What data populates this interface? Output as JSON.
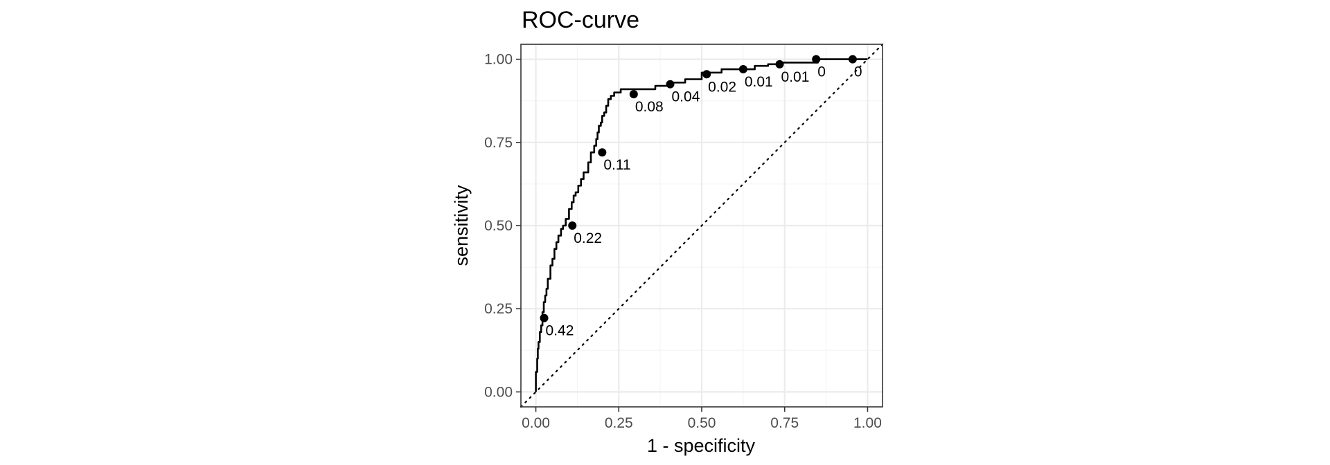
{
  "chart_data": {
    "type": "line",
    "title": "ROC-curve",
    "xlabel": "1 - specificity",
    "ylabel": "sensitivity",
    "xlim": [
      -0.045,
      1.045
    ],
    "ylim": [
      -0.045,
      1.045
    ],
    "grid": true,
    "x_ticks": [
      0,
      0.25,
      0.5,
      0.75,
      1
    ],
    "x_tick_labels": [
      "0.00",
      "0.25",
      "0.50",
      "0.75",
      "1.00"
    ],
    "y_ticks": [
      0,
      0.25,
      0.5,
      0.75,
      1
    ],
    "y_tick_labels": [
      "0.00",
      "0.25",
      "0.50",
      "0.75",
      "1.00"
    ],
    "reference_line": {
      "style": "dotted",
      "x": [
        -0.045,
        1.045
      ],
      "y": [
        -0.045,
        1.045
      ]
    },
    "series": [
      {
        "name": "ROC",
        "step": true,
        "x": [
          0.0,
          0.0,
          0.004,
          0.004,
          0.006,
          0.006,
          0.008,
          0.008,
          0.012,
          0.012,
          0.016,
          0.016,
          0.02,
          0.02,
          0.024,
          0.024,
          0.028,
          0.028,
          0.032,
          0.032,
          0.036,
          0.036,
          0.044,
          0.044,
          0.05,
          0.05,
          0.056,
          0.056,
          0.062,
          0.062,
          0.068,
          0.068,
          0.076,
          0.076,
          0.082,
          0.082,
          0.09,
          0.09,
          0.1,
          0.1,
          0.108,
          0.108,
          0.114,
          0.114,
          0.12,
          0.12,
          0.128,
          0.128,
          0.136,
          0.136,
          0.144,
          0.144,
          0.158,
          0.158,
          0.166,
          0.166,
          0.176,
          0.176,
          0.182,
          0.182,
          0.186,
          0.186,
          0.19,
          0.19,
          0.196,
          0.196,
          0.2,
          0.2,
          0.206,
          0.206,
          0.212,
          0.212,
          0.218,
          0.218,
          0.226,
          0.226,
          0.236,
          0.236,
          0.246,
          0.246,
          0.256,
          0.256,
          0.266,
          0.266,
          0.29,
          0.29,
          0.32,
          0.32,
          0.36,
          0.36,
          0.4,
          0.4,
          0.45,
          0.45,
          0.5,
          0.5,
          0.56,
          0.56,
          0.62,
          0.62,
          0.66,
          0.66,
          0.7,
          0.7,
          0.74,
          0.74,
          0.79,
          0.79,
          0.85,
          0.85,
          0.9,
          0.9,
          0.95,
          0.95,
          1.0
        ],
        "y": [
          0.0,
          0.06,
          0.06,
          0.1,
          0.1,
          0.13,
          0.13,
          0.15,
          0.15,
          0.18,
          0.18,
          0.2,
          0.2,
          0.24,
          0.24,
          0.27,
          0.27,
          0.29,
          0.29,
          0.31,
          0.31,
          0.34,
          0.34,
          0.38,
          0.38,
          0.4,
          0.4,
          0.43,
          0.43,
          0.45,
          0.45,
          0.47,
          0.47,
          0.49,
          0.49,
          0.5,
          0.5,
          0.52,
          0.52,
          0.55,
          0.55,
          0.57,
          0.57,
          0.59,
          0.59,
          0.6,
          0.6,
          0.62,
          0.62,
          0.64,
          0.64,
          0.66,
          0.66,
          0.69,
          0.69,
          0.72,
          0.72,
          0.74,
          0.74,
          0.76,
          0.76,
          0.78,
          0.78,
          0.8,
          0.8,
          0.81,
          0.81,
          0.83,
          0.83,
          0.84,
          0.84,
          0.86,
          0.86,
          0.88,
          0.88,
          0.89,
          0.89,
          0.9,
          0.9,
          0.9,
          0.9,
          0.91,
          0.91,
          0.91,
          0.91,
          0.91,
          0.91,
          0.91,
          0.91,
          0.92,
          0.92,
          0.93,
          0.93,
          0.94,
          0.94,
          0.96,
          0.96,
          0.97,
          0.97,
          0.97,
          0.97,
          0.98,
          0.98,
          0.985,
          0.985,
          0.99,
          0.99,
          0.99,
          0.99,
          1.0,
          1.0,
          1.0,
          1.0,
          1.0,
          1.0
        ]
      }
    ],
    "threshold_points": [
      {
        "x": 0.025,
        "y": 0.222,
        "label": "0.42"
      },
      {
        "x": 0.11,
        "y": 0.5,
        "label": "0.22"
      },
      {
        "x": 0.2,
        "y": 0.72,
        "label": "0.11"
      },
      {
        "x": 0.295,
        "y": 0.895,
        "label": "0.08"
      },
      {
        "x": 0.405,
        "y": 0.925,
        "label": "0.04"
      },
      {
        "x": 0.515,
        "y": 0.955,
        "label": "0.02"
      },
      {
        "x": 0.625,
        "y": 0.97,
        "label": "0.01"
      },
      {
        "x": 0.735,
        "y": 0.985,
        "label": "0.01"
      },
      {
        "x": 0.845,
        "y": 1.0,
        "label": "0"
      },
      {
        "x": 0.955,
        "y": 1.0,
        "label": "0"
      }
    ],
    "colors": {
      "curve": "#000000",
      "panel_border": "#333333",
      "grid_major": "#ebebeb",
      "grid_minor": "#f5f5f5",
      "tick": "#333333"
    }
  }
}
